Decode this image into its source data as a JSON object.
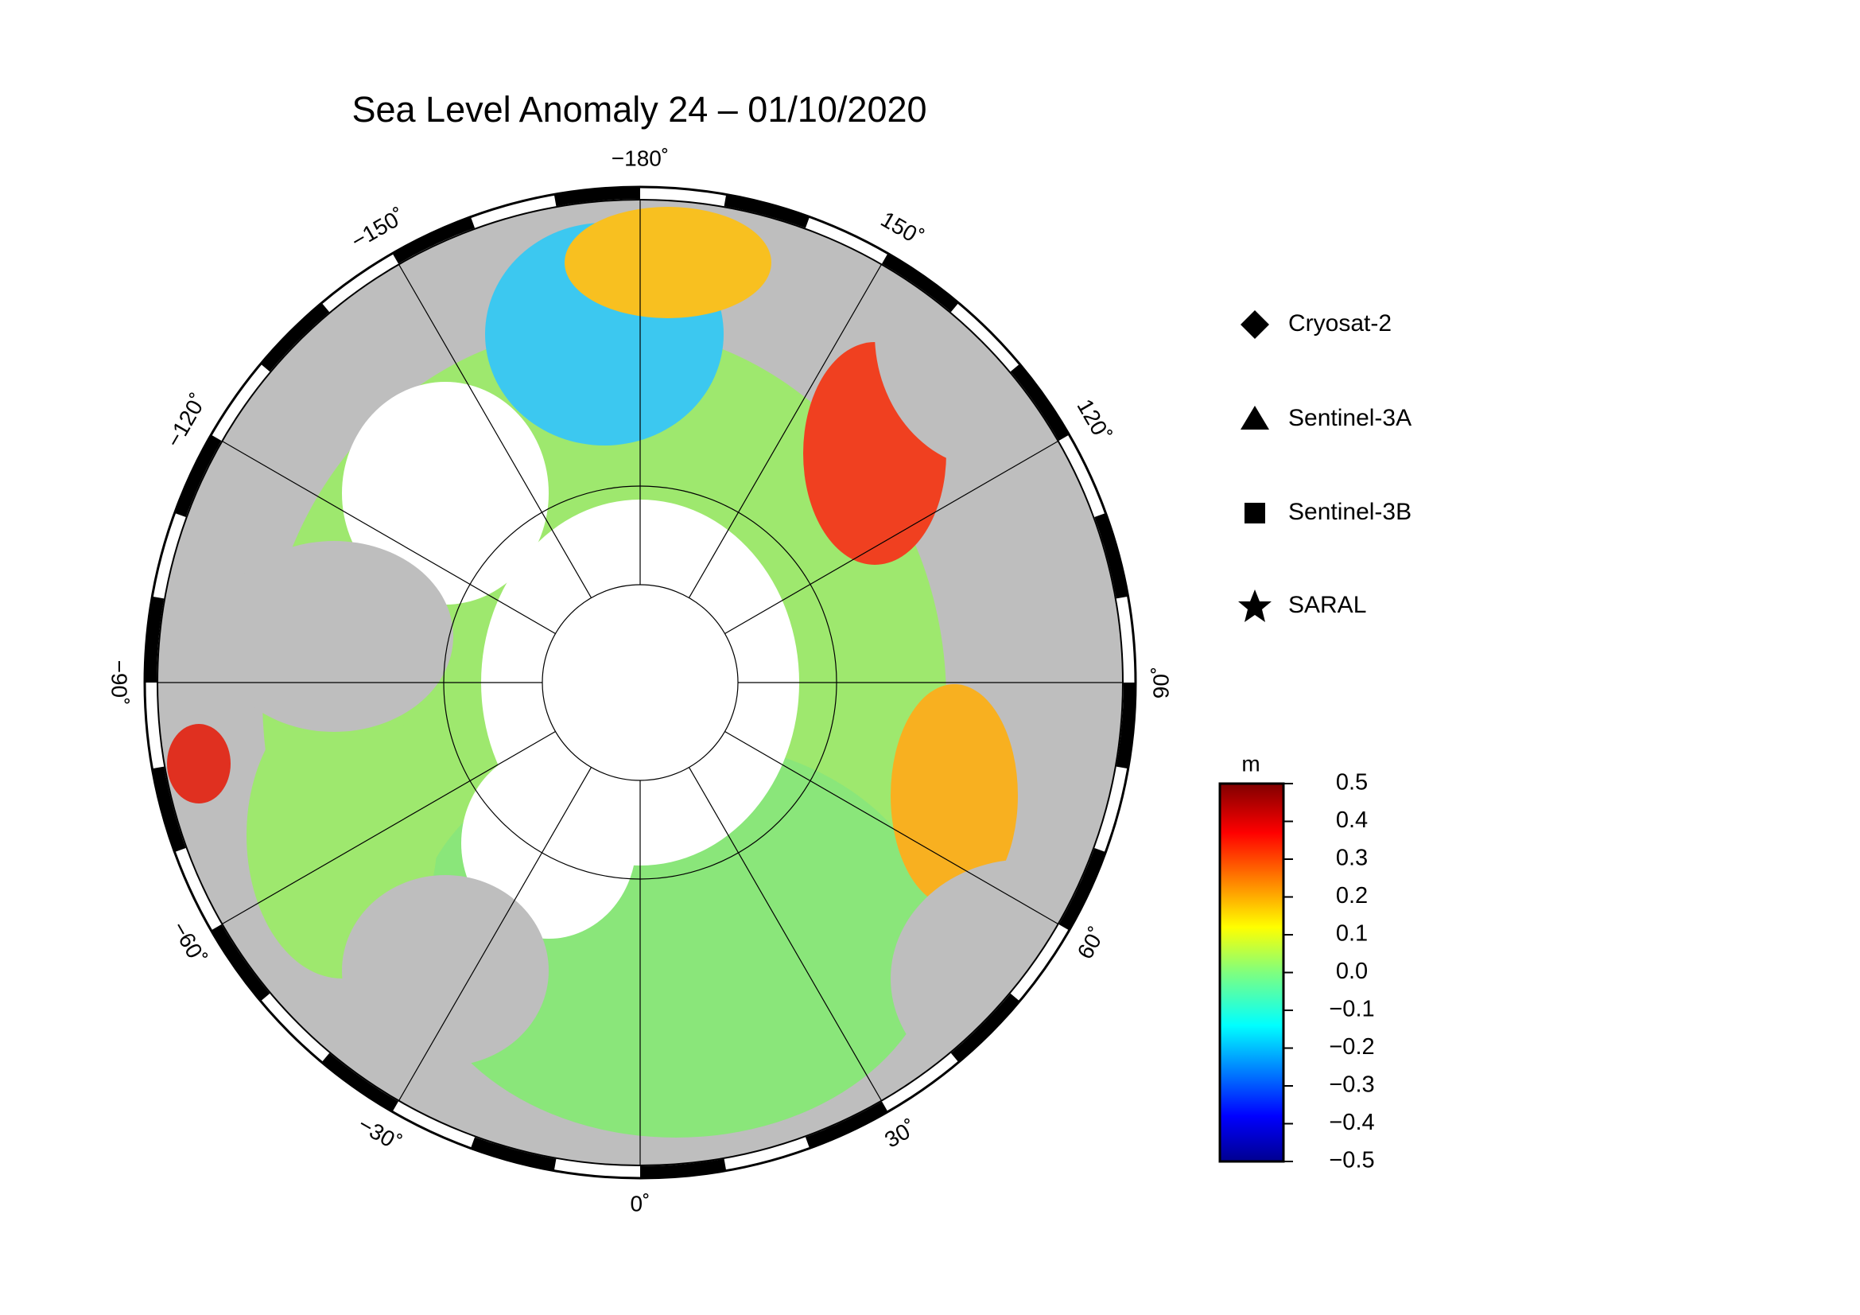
{
  "title": "Sea Level Anomaly 24 – 01/10/2020",
  "graticule_labels": [
    {
      "value": -180,
      "label": "−180˚"
    },
    {
      "value": 150,
      "label": "150˚"
    },
    {
      "value": 120,
      "label": "120˚"
    },
    {
      "value": 90,
      "label": "90˚"
    },
    {
      "value": 60,
      "label": "60˚"
    },
    {
      "value": 30,
      "label": "30˚"
    },
    {
      "value": 0,
      "label": "0˚"
    },
    {
      "value": -30,
      "label": "−30˚"
    },
    {
      "value": -60,
      "label": "−60˚"
    },
    {
      "value": -90,
      "label": "−90˚"
    },
    {
      "value": -120,
      "label": "−120˚"
    },
    {
      "value": -150,
      "label": "−150˚"
    }
  ],
  "legend": [
    "Cryosat-2",
    "Sentinel-3A",
    "Sentinel-3B",
    "SARAL"
  ],
  "colorbar": {
    "label": "m",
    "clim": [
      -0.5,
      0.5
    ],
    "ticks": [
      0.5,
      0.4,
      0.3,
      0.2,
      0.1,
      {
        "value": 0,
        "label": "0.0"
      },
      {
        "value": -0.1,
        "label": "−0.1"
      },
      {
        "value": -0.2,
        "label": "−0.2"
      },
      {
        "value": -0.3,
        "label": "−0.3"
      },
      {
        "value": -0.4,
        "label": "−0.4"
      },
      {
        "value": -0.5,
        "label": "−0.5"
      }
    ]
  }
}
